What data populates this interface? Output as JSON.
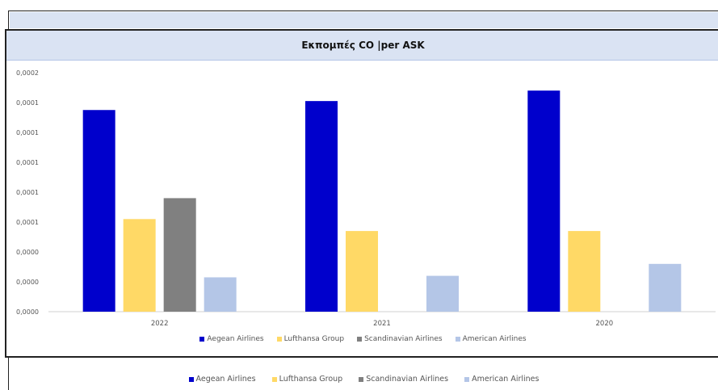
{
  "chart_data": {
    "type": "bar",
    "title": "Εκπομπές CO |per ASK",
    "categories": [
      "2022",
      "2021",
      "2020"
    ],
    "y_ticks": [
      "0,0000",
      "0,0000",
      "0,0000",
      "0,0001",
      "0,0001",
      "0,0001",
      "0,0001",
      "0,0001",
      "0,0002"
    ],
    "ylim": [
      0,
      0.00016
    ],
    "series": [
      {
        "name": "Aegean Airlines",
        "color": "#0000cc",
        "values": [
          0.000135,
          0.000141,
          0.000148
        ]
      },
      {
        "name": "Lufthansa Group",
        "color": "#ffd966",
        "values": [
          6.2e-05,
          5.4e-05,
          5.4e-05
        ]
      },
      {
        "name": "Scandinavian Airlines",
        "color": "#808080",
        "values": [
          7.6e-05,
          0,
          0
        ]
      },
      {
        "name": "American Airlines",
        "color": "#b4c6e7",
        "values": [
          2.3e-05,
          2.4e-05,
          3.2e-05
        ]
      }
    ],
    "grid": false,
    "legend_position": "bottom"
  }
}
